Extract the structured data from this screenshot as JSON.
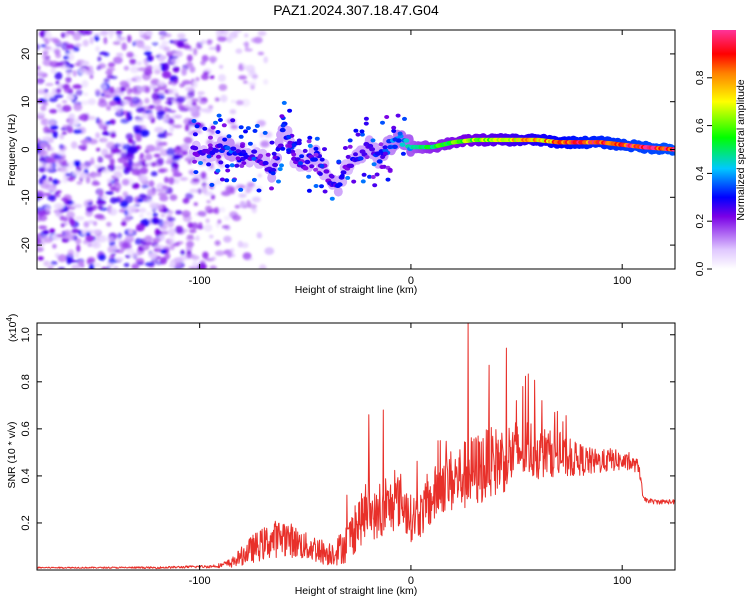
{
  "chart_data": [
    {
      "type": "heatmap",
      "title": "PAZ1.2024.307.18.47.G04",
      "xlabel": "Height of straight line (km)",
      "ylabel": "Frequency (Hz)",
      "xlim": [
        -177,
        125
      ],
      "ylim": [
        -25,
        25
      ],
      "x_ticks": [
        -100,
        0,
        100
      ],
      "y_ticks": [
        -20,
        -10,
        0,
        10,
        20
      ],
      "colorbar": {
        "label": "Normalized spectral amplitude",
        "ticks": [
          0.0,
          0.2,
          0.4,
          0.6,
          0.8
        ],
        "range": [
          0,
          1
        ],
        "colors": [
          "#ffffff",
          "#e0c8ff",
          "#7a00e6",
          "#0000ff",
          "#00c8ff",
          "#00ff00",
          "#ffff00",
          "#ff8000",
          "#ff0000",
          "#ff3399"
        ]
      },
      "frequency_ridge": {
        "x": [
          -103,
          -95,
          -90,
          -85,
          -80,
          -75,
          -70,
          -65,
          -60,
          -55,
          -50,
          -45,
          -40,
          -35,
          -30,
          -25,
          -20,
          -15,
          -10,
          -5,
          0,
          10,
          20,
          30,
          40,
          50,
          60,
          70,
          80,
          90,
          100,
          110,
          125
        ],
        "y": [
          -0.5,
          -1,
          0.5,
          0,
          -2,
          -1,
          -2,
          -5,
          5,
          -2,
          -3,
          -1,
          -5,
          -8,
          -3,
          -2,
          1,
          -2,
          1,
          2,
          0.5,
          0.5,
          1.5,
          2,
          2,
          2,
          2,
          1.5,
          1.5,
          1.5,
          1,
          0.5,
          0
        ],
        "amplitude": [
          0.25,
          0.25,
          0.3,
          0.35,
          0.3,
          0.25,
          0.25,
          0.3,
          0.3,
          0.25,
          0.25,
          0.3,
          0.25,
          0.3,
          0.25,
          0.3,
          0.3,
          0.3,
          0.35,
          0.4,
          0.45,
          0.55,
          0.6,
          0.65,
          0.7,
          0.75,
          0.8,
          0.85,
          0.9,
          0.92,
          0.95,
          0.97,
          1.0
        ]
      }
    },
    {
      "type": "line",
      "xlabel": "Height of straight line (km)",
      "ylabel": "SNR (10 * v/v)",
      "y_scale_label": "(x10",
      "y_scale_exp": "4",
      "xlim": [
        -177,
        125
      ],
      "ylim": [
        0,
        1.05
      ],
      "x_ticks": [
        -100,
        0,
        100
      ],
      "y_ticks": [
        0.2,
        0.4,
        0.6,
        0.8,
        1.0
      ],
      "color": "#e8302a",
      "envelope": {
        "x": [
          -177,
          -150,
          -120,
          -95,
          -90,
          -85,
          -80,
          -75,
          -70,
          -65,
          -60,
          -55,
          -50,
          -45,
          -40,
          -35,
          -30,
          -25,
          -20,
          -15,
          -10,
          -5,
          0,
          5,
          10,
          15,
          20,
          25,
          30,
          35,
          40,
          45,
          50,
          55,
          60,
          65,
          70,
          75,
          80,
          85,
          90,
          95,
          100,
          105,
          108,
          110,
          115,
          120,
          125
        ],
        "y": [
          0.01,
          0.01,
          0.01,
          0.015,
          0.02,
          0.03,
          0.06,
          0.09,
          0.11,
          0.13,
          0.14,
          0.12,
          0.1,
          0.09,
          0.07,
          0.08,
          0.12,
          0.2,
          0.25,
          0.22,
          0.27,
          0.3,
          0.22,
          0.24,
          0.3,
          0.37,
          0.38,
          0.4,
          0.42,
          0.44,
          0.46,
          0.48,
          0.5,
          0.52,
          0.5,
          0.5,
          0.48,
          0.47,
          0.47,
          0.46,
          0.46,
          0.47,
          0.46,
          0.45,
          0.44,
          0.3,
          0.29,
          0.29,
          0.29
        ],
        "noise": [
          0.003,
          0.003,
          0.004,
          0.006,
          0.01,
          0.02,
          0.04,
          0.06,
          0.07,
          0.08,
          0.08,
          0.07,
          0.06,
          0.06,
          0.05,
          0.06,
          0.09,
          0.11,
          0.11,
          0.1,
          0.12,
          0.12,
          0.1,
          0.1,
          0.12,
          0.13,
          0.14,
          0.15,
          0.16,
          0.16,
          0.15,
          0.15,
          0.14,
          0.13,
          0.12,
          0.1,
          0.09,
          0.08,
          0.07,
          0.06,
          0.05,
          0.05,
          0.04,
          0.03,
          0.03,
          0.01,
          0.01,
          0.01,
          0.01
        ]
      },
      "peaks": [
        {
          "x": -20,
          "y": 0.66
        },
        {
          "x": -13,
          "y": 0.68
        },
        {
          "x": 14,
          "y": 0.55
        },
        {
          "x": 27,
          "y": 1.05
        },
        {
          "x": 37,
          "y": 0.87
        },
        {
          "x": 50,
          "y": 0.72
        },
        {
          "x": 53,
          "y": 0.78
        },
        {
          "x": 62,
          "y": 0.72
        },
        {
          "x": 68,
          "y": 0.67
        },
        {
          "x": 72,
          "y": 0.63
        }
      ]
    }
  ]
}
